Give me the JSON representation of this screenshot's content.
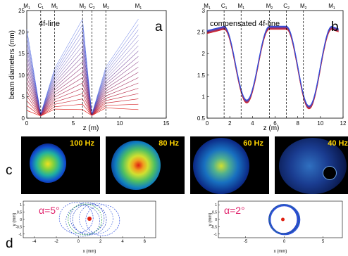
{
  "panels": {
    "a": "a",
    "b": "b",
    "c": "c",
    "d": "d"
  },
  "plot_a": {
    "title": "4f-line",
    "ylabel": "beam diameters (mm)",
    "xlabel": "z (m)",
    "xticks": [
      "0",
      "5",
      "10",
      "15"
    ],
    "yticks": [
      "0",
      "5",
      "10",
      "15",
      "20",
      "25"
    ],
    "markers": [
      {
        "label": "M",
        "sub": "1",
        "z": 0
      },
      {
        "label": "C",
        "sub": "1",
        "z": 1.5
      },
      {
        "label": "M",
        "sub": "1",
        "z": 3
      },
      {
        "label": "M",
        "sub": "2",
        "z": 6
      },
      {
        "label": "C",
        "sub": "2",
        "z": 7
      },
      {
        "label": "M",
        "sub": "2",
        "z": 8.5
      },
      {
        "label": "M",
        "sub": "1",
        "z": 12
      }
    ]
  },
  "plot_b": {
    "title": "compensated 4f-line",
    "xlabel": "z (m)",
    "xticks": [
      "0",
      "2",
      "4",
      "6",
      "8",
      "10",
      "12"
    ],
    "yticks": [
      "0.5",
      "1",
      "1.5",
      "2",
      "2.5",
      "3"
    ],
    "markers": [
      {
        "label": "M",
        "sub": "1",
        "z": 0
      },
      {
        "label": "C",
        "sub": "1",
        "z": 1.5
      },
      {
        "label": "M",
        "sub": "1",
        "z": 3
      },
      {
        "label": "M",
        "sub": "2",
        "z": 5.5
      },
      {
        "label": "C",
        "sub": "2",
        "z": 7
      },
      {
        "label": "M",
        "sub": "2",
        "z": 8.5
      },
      {
        "label": "M",
        "sub": "1",
        "z": 11
      }
    ]
  },
  "beam_images": [
    {
      "label": "100 Hz"
    },
    {
      "label": "80 Hz"
    },
    {
      "label": "60 Hz"
    },
    {
      "label": "40 Hz"
    }
  ],
  "plot_d1": {
    "angle_label": "α=5°",
    "xlabel": "x (mm)",
    "ylabel": "y (mm)",
    "xticks": [
      "-4",
      "-2",
      "0",
      "2",
      "4",
      "6"
    ],
    "yticks": [
      "1",
      "0.5",
      "0",
      "-0.5",
      "-1"
    ]
  },
  "plot_d2": {
    "angle_label": "α=2°",
    "xlabel": "x (mm)",
    "ylabel": "y (mm)",
    "xticks": [
      "-5",
      "0",
      "5"
    ],
    "yticks": [
      "1",
      "0.5",
      "0",
      "-0.5",
      "-1"
    ]
  },
  "colors": {
    "hot": "#e0201a",
    "cold": "#3050e0",
    "angle_text": "#e0206a"
  }
}
